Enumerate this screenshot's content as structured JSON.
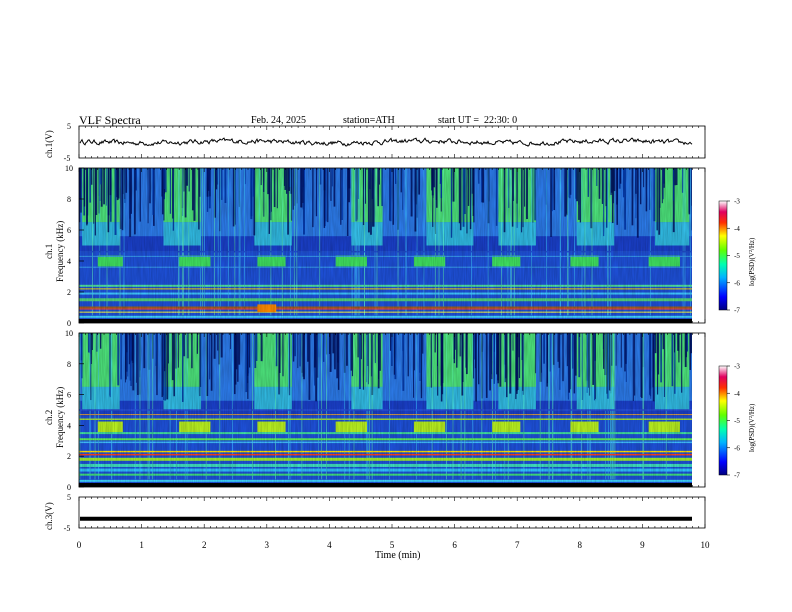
{
  "header": {
    "title": "VLF Spectra",
    "date": "Feb. 24, 2025",
    "station": "station=ATH",
    "start": "start UT =  22:30: 0"
  },
  "chart_data": [
    {
      "type": "line",
      "ylabel": "ch.1(V)",
      "ylim": [
        -5,
        5
      ],
      "y_tick_labels": [
        "5",
        "-5"
      ],
      "baseline_value": 0,
      "note_values": "noisy trace fluctuating roughly between -1 and 1 V"
    },
    {
      "type": "heatmap",
      "ylabel": "ch.1\nFrequency (kHz)",
      "ylim": [
        0,
        10
      ],
      "y_tick_labels": [
        "0",
        "2",
        "4",
        "6",
        "8",
        "10"
      ],
      "colorbar_label": "log(PSD)(V²/Hz)",
      "colorbar_range": [
        -7,
        -3
      ],
      "colorbar_ticks": [
        "-3",
        "-4",
        "-5",
        "-6",
        "-7"
      ],
      "burst_bands_min": [
        [
          0.05,
          0.65
        ],
        [
          1.35,
          1.95
        ],
        [
          2.8,
          3.4
        ],
        [
          4.35,
          4.85
        ],
        [
          5.55,
          6.3
        ],
        [
          6.7,
          7.3
        ],
        [
          7.95,
          8.55
        ],
        [
          9.2,
          9.75
        ]
      ],
      "tone_blocks_min": [
        [
          0.3,
          0.7
        ],
        [
          1.6,
          2.1
        ],
        [
          2.85,
          3.3
        ],
        [
          4.1,
          4.6
        ],
        [
          5.35,
          5.85
        ],
        [
          6.6,
          7.05
        ],
        [
          7.85,
          8.3
        ],
        [
          9.1,
          9.6
        ]
      ],
      "tone_freq_khz": 4.0
    },
    {
      "type": "heatmap",
      "ylabel": "ch.2\nFrequency (kHz)",
      "ylim": [
        0,
        10
      ],
      "y_tick_labels": [
        "0",
        "2",
        "4",
        "6",
        "8",
        "10"
      ],
      "colorbar_label": "log(PSD)(V²/Hz)",
      "colorbar_range": [
        -7,
        -3
      ],
      "colorbar_ticks": [
        "-3",
        "-4",
        "-5",
        "-6",
        "-7"
      ],
      "tone_freq_khz": 3.9
    },
    {
      "type": "line",
      "ylabel": "ch.3(V)",
      "ylim": [
        -5,
        5
      ],
      "y_tick_labels": [
        "5",
        "-5"
      ],
      "constant_value": -2
    }
  ],
  "xaxis": {
    "label": "Time (min)",
    "range": [
      0,
      10
    ],
    "tick_labels": [
      "0",
      "1",
      "2",
      "3",
      "4",
      "5",
      "6",
      "7",
      "8",
      "9",
      "10"
    ]
  }
}
